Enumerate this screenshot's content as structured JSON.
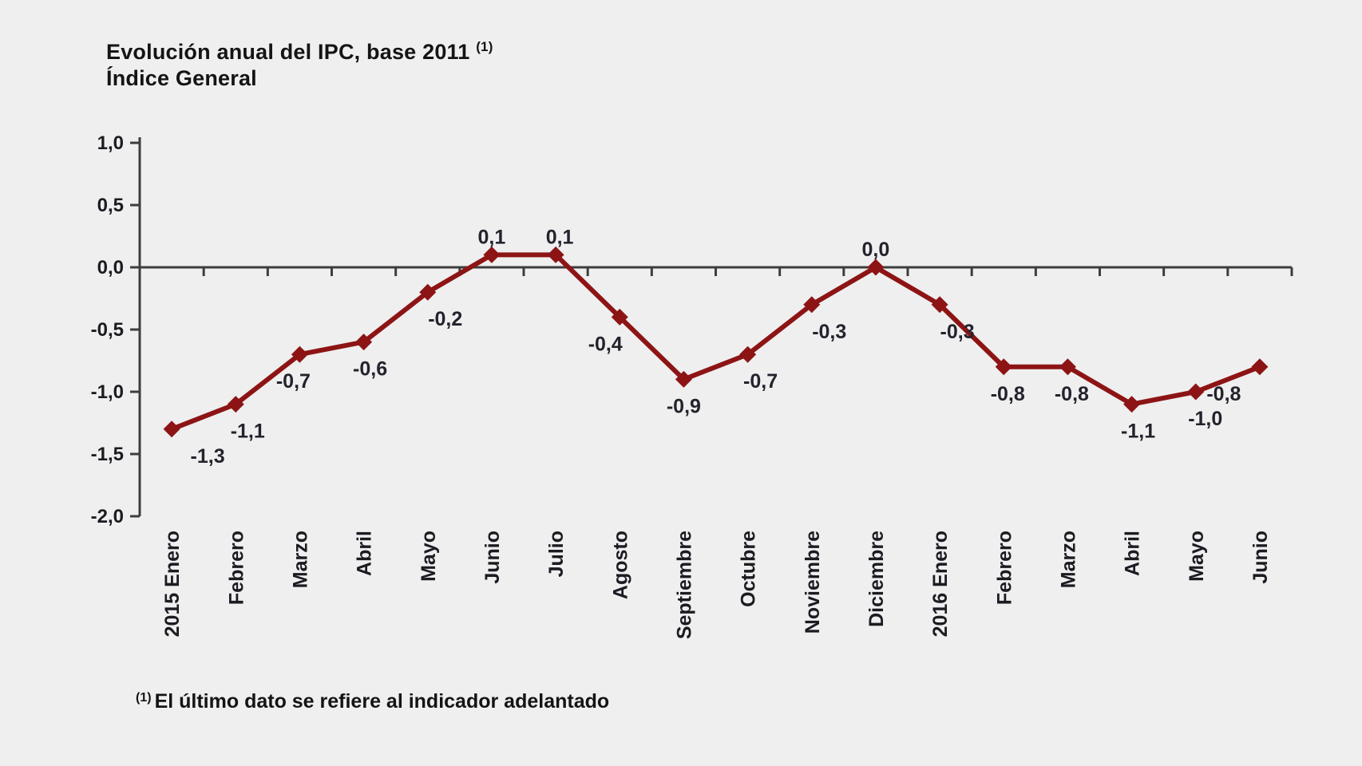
{
  "page": {
    "background": "#efefef"
  },
  "header": {
    "title_line1": "Evolución anual del IPC, base 2011",
    "title_superscript": "(1)",
    "title_line2": "Índice General"
  },
  "footnote": {
    "marker": "(1)",
    "text": "El último dato se refiere al indicador adelantado"
  },
  "chart_data": {
    "type": "line",
    "title": "Evolución anual del IPC, base 2011 (1) — Índice General",
    "categories": [
      "2015 Enero",
      "Febrero",
      "Marzo",
      "Abril",
      "Mayo",
      "Junio",
      "Julio",
      "Agosto",
      "Septiembre",
      "Octubre",
      "Noviembre",
      "Diciembre",
      "2016 Enero",
      "Febrero",
      "Marzo",
      "Abril",
      "Mayo",
      "Junio"
    ],
    "values": [
      -1.3,
      -1.1,
      -0.7,
      -0.6,
      -0.2,
      0.1,
      0.1,
      -0.4,
      -0.9,
      -0.7,
      -0.3,
      0.0,
      -0.3,
      -0.8,
      -0.8,
      -1.1,
      -1.0,
      -0.8
    ],
    "point_labels": [
      "-1,3",
      "-1,1",
      "-0,7",
      "-0,6",
      "-0,2",
      "0,1",
      "0,1",
      "-0,4",
      "-0,9",
      "-0,7",
      "-0,3",
      "0,0",
      "-0,3",
      "-0,8",
      "-0,8",
      "-1,1",
      "-1,0",
      "-0,8"
    ],
    "ylim": [
      -2.0,
      1.0
    ],
    "ytick_step": 0.5,
    "ytick_labels": [
      "1,0",
      "0,5",
      "0,0",
      "-0,5",
      "-1,0",
      "-1,5",
      "-2,0"
    ],
    "ytick_values": [
      1.0,
      0.5,
      0.0,
      -0.5,
      -1.0,
      -1.5,
      -2.0
    ],
    "xlabel": "",
    "ylabel": "",
    "grid": false,
    "legend": "none",
    "decimal_separator": ",",
    "line_color": "#8d1415",
    "marker": "diamond",
    "marker_color": "#8d1415",
    "axis_color": "#3d3d3d",
    "tick_label_color": "#1b1b22",
    "data_label_color": "#23232d"
  }
}
